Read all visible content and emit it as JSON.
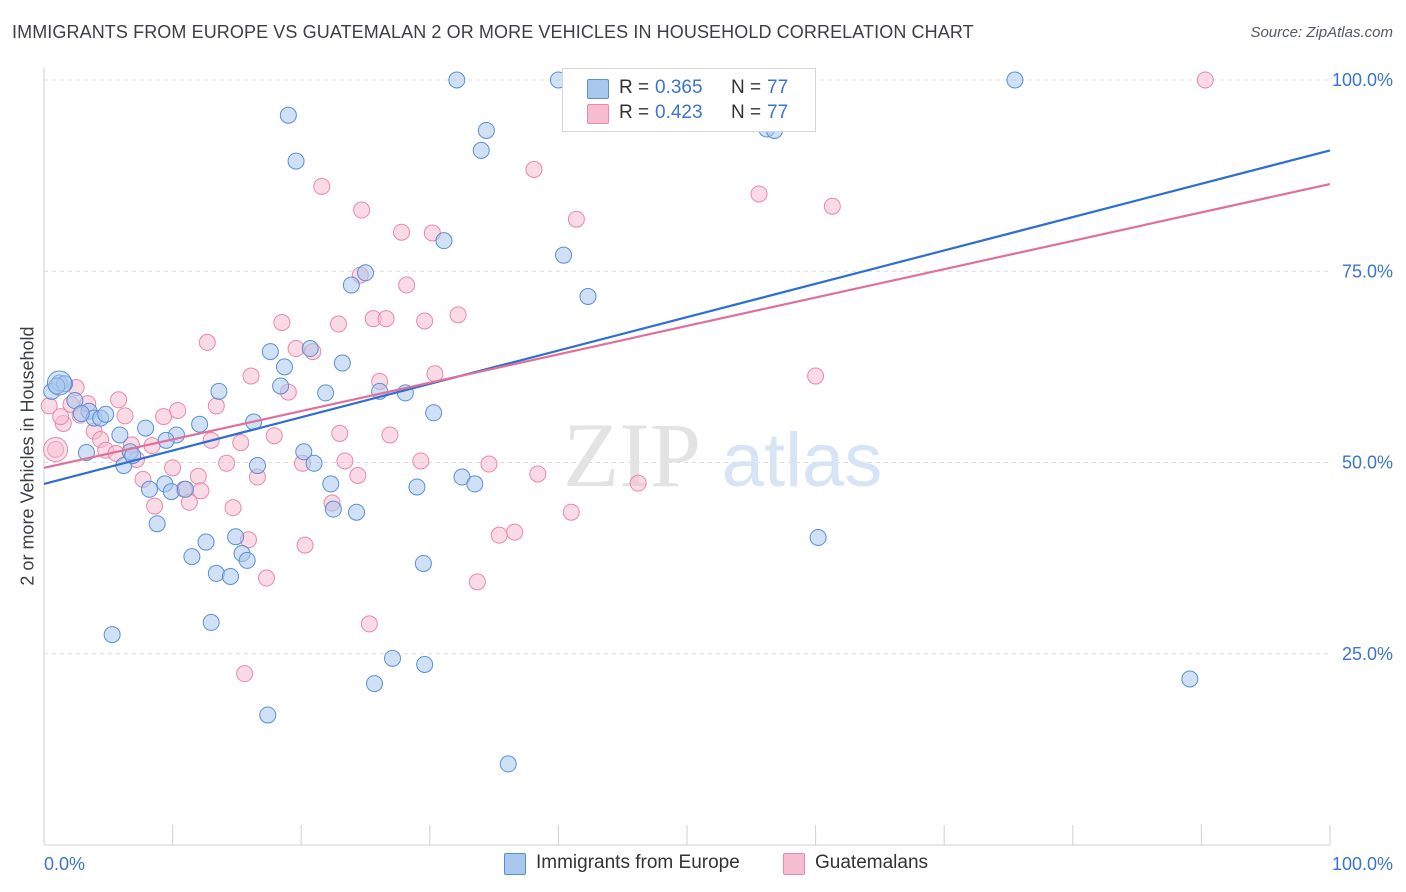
{
  "header": {
    "title": "IMMIGRANTS FROM EUROPE VS GUATEMALAN 2 OR MORE VEHICLES IN HOUSEHOLD CORRELATION CHART",
    "source": "Source: ZipAtlas.com"
  },
  "colors": {
    "blue_fill": "#a9c8ee",
    "blue_stroke": "#5a8fd6",
    "blue_line": "#2f6fcf",
    "pink_fill": "#f6bcd0",
    "pink_stroke": "#e889a8",
    "pink_line": "#e0709a",
    "axis_text": "#3b74cf"
  },
  "watermark": {
    "zip": "ZIP",
    "atlas": "atlas"
  },
  "stats": {
    "rows": [
      {
        "r_label": "R = ",
        "r_value": "0.365",
        "n_label": "N = ",
        "n_value": "77"
      },
      {
        "r_label": "R = ",
        "r_value": "0.423",
        "n_label": "N = ",
        "n_value": "77"
      }
    ]
  },
  "legend": {
    "items": [
      {
        "label": "Immigrants from Europe"
      },
      {
        "label": "Guatemalans"
      }
    ]
  },
  "chart_data": {
    "type": "scatter",
    "title": "IMMIGRANTS FROM EUROPE VS GUATEMALAN 2 OR MORE VEHICLES IN HOUSEHOLD CORRELATION CHART",
    "xlabel": "",
    "ylabel": "2 or more Vehicles in Household",
    "xlim": [
      0,
      100
    ],
    "ylim": [
      0,
      100
    ],
    "x_tick_labels": [
      "0.0%",
      "100.0%"
    ],
    "y_tick_labels": [
      "25.0%",
      "50.0%",
      "75.0%",
      "100.0%"
    ],
    "y_ticks": [
      25,
      50,
      75,
      100
    ],
    "grid": true,
    "legend_position": "bottom-center",
    "series": [
      {
        "name": "Immigrants from Europe",
        "r": 0.365,
        "n": 77,
        "trend": {
          "y_at_x0": 47.2,
          "y_at_x100": 90.8
        },
        "points": [
          [
            0.6,
            59.3
          ],
          [
            1.2,
            60.4
          ],
          [
            1.6,
            60.3
          ],
          [
            2.4,
            58.1
          ],
          [
            3.3,
            51.3
          ],
          [
            3.5,
            56.7
          ],
          [
            3.9,
            55.8
          ],
          [
            4.4,
            55.8
          ],
          [
            4.8,
            56.3
          ],
          [
            5.3,
            27.5
          ],
          [
            5.9,
            53.6
          ],
          [
            6.2,
            49.6
          ],
          [
            6.7,
            51.4
          ],
          [
            7.9,
            54.5
          ],
          [
            8.2,
            46.5
          ],
          [
            8.8,
            42.0
          ],
          [
            9.4,
            47.2
          ],
          [
            9.9,
            46.2
          ],
          [
            10.3,
            53.6
          ],
          [
            11.0,
            46.5
          ],
          [
            11.5,
            37.7
          ],
          [
            12.1,
            55.0
          ],
          [
            12.6,
            39.6
          ],
          [
            13.0,
            29.1
          ],
          [
            13.4,
            35.5
          ],
          [
            13.6,
            59.3
          ],
          [
            14.5,
            35.1
          ],
          [
            14.9,
            40.3
          ],
          [
            15.4,
            38.1
          ],
          [
            15.8,
            37.2
          ],
          [
            16.3,
            55.3
          ],
          [
            16.6,
            49.6
          ],
          [
            17.4,
            17.0
          ],
          [
            17.6,
            64.5
          ],
          [
            18.4,
            60.0
          ],
          [
            18.7,
            62.5
          ],
          [
            19.0,
            95.4
          ],
          [
            19.6,
            89.4
          ],
          [
            20.2,
            51.4
          ],
          [
            20.7,
            64.9
          ],
          [
            21.0,
            49.9
          ],
          [
            21.9,
            59.1
          ],
          [
            22.3,
            47.2
          ],
          [
            22.5,
            43.9
          ],
          [
            23.2,
            63.0
          ],
          [
            23.9,
            73.2
          ],
          [
            24.3,
            43.5
          ],
          [
            25.0,
            74.8
          ],
          [
            25.7,
            21.1
          ],
          [
            26.1,
            59.3
          ],
          [
            27.1,
            24.4
          ],
          [
            28.1,
            59.1
          ],
          [
            29.0,
            46.8
          ],
          [
            29.5,
            36.8
          ],
          [
            29.6,
            23.6
          ],
          [
            30.3,
            56.5
          ],
          [
            31.1,
            79.0
          ],
          [
            32.1,
            100.0
          ],
          [
            32.5,
            48.1
          ],
          [
            33.5,
            47.2
          ],
          [
            34.0,
            90.8
          ],
          [
            34.4,
            93.4
          ],
          [
            36.1,
            10.6
          ],
          [
            40.0,
            100.0
          ],
          [
            40.4,
            77.1
          ],
          [
            42.3,
            71.7
          ],
          [
            47.7,
            100.0
          ],
          [
            52.7,
            100.0
          ],
          [
            56.2,
            93.6
          ],
          [
            56.8,
            93.4
          ],
          [
            60.2,
            40.2
          ],
          [
            75.5,
            100.0
          ],
          [
            89.1,
            21.7
          ],
          [
            1.0,
            60.0
          ],
          [
            2.9,
            56.4
          ],
          [
            6.9,
            50.9
          ],
          [
            9.5,
            52.9
          ]
        ]
      },
      {
        "name": "Guatemalans",
        "r": 0.423,
        "n": 77,
        "trend": {
          "y_at_x0": 49.3,
          "y_at_x100": 86.4
        },
        "points": [
          [
            0.4,
            57.4
          ],
          [
            0.9,
            51.7
          ],
          [
            1.5,
            55.1
          ],
          [
            2.1,
            57.6
          ],
          [
            2.5,
            59.8
          ],
          [
            2.8,
            56.2
          ],
          [
            3.4,
            57.7
          ],
          [
            3.9,
            54.1
          ],
          [
            4.4,
            53.0
          ],
          [
            4.8,
            51.6
          ],
          [
            5.6,
            51.2
          ],
          [
            5.8,
            58.2
          ],
          [
            6.3,
            56.1
          ],
          [
            6.8,
            52.3
          ],
          [
            7.2,
            50.4
          ],
          [
            7.7,
            47.8
          ],
          [
            8.4,
            52.2
          ],
          [
            8.6,
            44.3
          ],
          [
            9.3,
            56.0
          ],
          [
            10.0,
            49.3
          ],
          [
            10.4,
            56.8
          ],
          [
            10.9,
            46.5
          ],
          [
            11.3,
            44.8
          ],
          [
            12.0,
            48.2
          ],
          [
            12.7,
            65.7
          ],
          [
            13.0,
            52.9
          ],
          [
            13.4,
            57.4
          ],
          [
            14.2,
            49.9
          ],
          [
            14.7,
            44.1
          ],
          [
            15.3,
            52.6
          ],
          [
            15.6,
            22.4
          ],
          [
            15.9,
            39.9
          ],
          [
            16.1,
            61.3
          ],
          [
            16.6,
            48.1
          ],
          [
            17.3,
            34.9
          ],
          [
            17.9,
            53.5
          ],
          [
            18.5,
            68.3
          ],
          [
            19.0,
            59.2
          ],
          [
            19.6,
            64.9
          ],
          [
            20.1,
            49.9
          ],
          [
            20.3,
            39.2
          ],
          [
            20.9,
            64.5
          ],
          [
            21.6,
            86.1
          ],
          [
            22.4,
            44.7
          ],
          [
            22.9,
            68.1
          ],
          [
            23.0,
            53.8
          ],
          [
            23.4,
            50.2
          ],
          [
            24.4,
            48.3
          ],
          [
            24.6,
            74.5
          ],
          [
            24.7,
            83.0
          ],
          [
            25.3,
            28.9
          ],
          [
            25.6,
            68.8
          ],
          [
            26.1,
            60.6
          ],
          [
            26.6,
            68.8
          ],
          [
            26.9,
            53.6
          ],
          [
            27.8,
            80.1
          ],
          [
            28.2,
            73.2
          ],
          [
            29.3,
            50.2
          ],
          [
            29.6,
            68.5
          ],
          [
            30.2,
            80.0
          ],
          [
            30.4,
            61.6
          ],
          [
            32.2,
            69.3
          ],
          [
            33.7,
            34.4
          ],
          [
            34.6,
            49.8
          ],
          [
            35.4,
            40.5
          ],
          [
            36.6,
            40.9
          ],
          [
            38.1,
            88.3
          ],
          [
            38.4,
            48.5
          ],
          [
            41.0,
            43.5
          ],
          [
            41.4,
            81.8
          ],
          [
            46.2,
            47.3
          ],
          [
            55.6,
            85.1
          ],
          [
            60.0,
            61.3
          ],
          [
            61.3,
            83.5
          ],
          [
            90.3,
            100.0
          ],
          [
            1.3,
            56.0
          ],
          [
            12.2,
            46.3
          ]
        ]
      }
    ]
  }
}
